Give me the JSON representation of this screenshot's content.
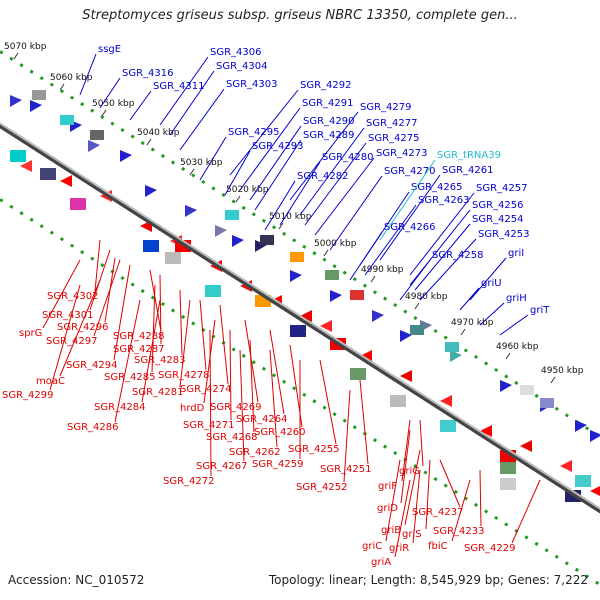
{
  "title": "Streptomyces griseus subsp. griseus NBRC 13350, complete gen...",
  "accession": "Accession: NC_010572",
  "summary": "Topology: linear; Length: 8,545,929 bp; Genes: 7,222",
  "colors": {
    "forward": "#0000cc",
    "reverse": "#dd0000",
    "rna": "#22bbcc",
    "axis": "#888888",
    "dots": "#229922"
  },
  "scale_labels": [
    "5070 kbp",
    "5060 kbp",
    "5050 kbp",
    "5040 kbp",
    "5030 kbp",
    "5020 kbp",
    "5010 kbp",
    "5000 kbp",
    "4990 kbp",
    "4980 kbp",
    "4970 kbp",
    "4960 kbp",
    "4950 kbp"
  ],
  "forward_genes": [
    "ssgE",
    "SGR_4316",
    "SGR_4306",
    "SGR_4304",
    "SGR_4311",
    "SGR_4303",
    "SGR_4292",
    "SGR_4291",
    "SGR_4279",
    "SGR_4290",
    "SGR_4277",
    "SGR_4295",
    "SGR_4289",
    "SGR_4275",
    "SGR_4293",
    "SGR_4280",
    "SGR_4273",
    "SGR_4282",
    "SGR_4270",
    "SGR_4261",
    "SGR_4265",
    "SGR_4257",
    "SGR_4263",
    "SGR_4256",
    "SGR_4254",
    "SGR_4266",
    "SGR_4253",
    "SGR_4258",
    "griI",
    "griU",
    "griH",
    "griT"
  ],
  "rna_genes": [
    "SGR_tRNA39"
  ],
  "reverse_genes": [
    "SGR_4302",
    "SGR_4301",
    "sprG",
    "SGR_4296",
    "SGR_4297",
    "SGR_4288",
    "SGR_4294",
    "SGR_4287",
    "SGR_4285",
    "SGR_4283",
    "moaC",
    "SGR_4299",
    "SGR_4281",
    "SGR_4278",
    "SGR_4284",
    "SGR_4274",
    "hrdD",
    "SGR_4286",
    "SGR_4269",
    "SGR_4271",
    "SGR_4264",
    "SGR_4268",
    "SGR_4260",
    "SGR_4262",
    "SGR_4255",
    "SGR_4267",
    "SGR_4259",
    "SGR_4272",
    "SGR_4251",
    "SGR_4252",
    "griG",
    "griF",
    "griD",
    "SGR_4237",
    "griB",
    "griS",
    "griC",
    "griR",
    "griA",
    "SGR_4233",
    "fbiC",
    "SGR_4229"
  ]
}
